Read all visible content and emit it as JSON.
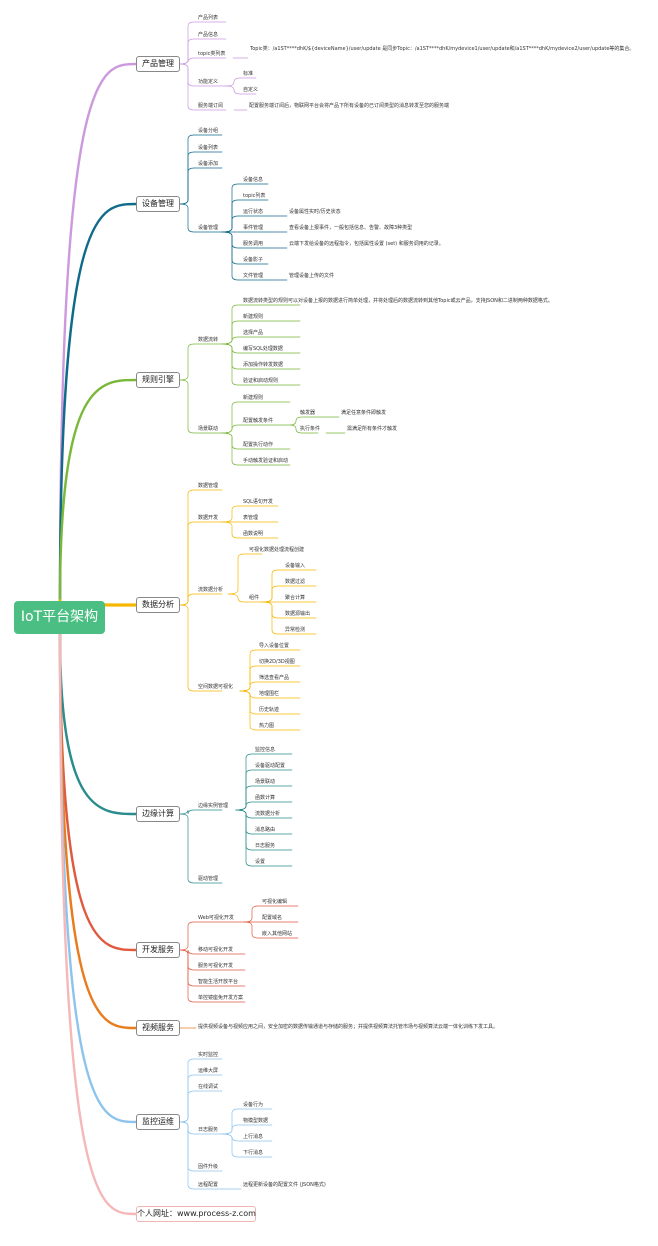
{
  "title": "IoT平台架构",
  "colors": {
    "root": "#4bbf83",
    "product": "#cc99dd",
    "device": "#106a8a",
    "rules": "#7ab83a",
    "analytics": "#f5b800",
    "edge": "#2a8c8c",
    "dev": "#e05a40",
    "video": "#e87c1e",
    "monitor": "#8cc4ee",
    "website": "#f5b8b8"
  },
  "branches": {
    "product": {
      "label": "产品管理",
      "items": [
        "产品列表",
        "产品信息",
        "topic类列表",
        "功能定义",
        "服务端订阅"
      ],
      "topic_desc": "Topic类：/a1ST****dhK/${deviceName}/user/update 是同步Topic：/a1ST****dhK/mydevice1/user/update和/a1ST****dhK/mydevice2/user/update等的集合。",
      "function_items": [
        "标准",
        "自定义"
      ],
      "subscribe_desc": "配置服务端订阅后，物联网平台会将产品下所有设备的已订阅类型的消息转发至您的服务端"
    },
    "device": {
      "label": "设备管理",
      "items": [
        "设备分组",
        "设备列表",
        "设备添加",
        "设备管理"
      ],
      "manage_items": [
        "设备信息",
        "topic列表",
        "运行状态",
        "事件管理",
        "服务调用",
        "设备影子",
        "文件管理"
      ],
      "run_desc": "设备属性实时/历史状态",
      "event_desc": "查看设备上报事件，一般包括信息、告警、故障3种类型",
      "service_desc": "云端下发给设备的远程指令，包括属性设置 (set) 和服务调用的记录。",
      "file_desc": "管理设备上传的文件"
    },
    "rules": {
      "label": "规则引擎",
      "items": [
        "数据流转",
        "场景联动"
      ],
      "flow_items": [
        "数据流转类型的规则可以对设备上报的数据进行简单处理，并将处理后的数据流转到其他Topic或云产品，支持JSON和二进制两种数据格式。",
        "新建规则",
        "选择产品",
        "编写SQL处理数据",
        "添加操作转发数据",
        "验证和启动规则"
      ],
      "scene_items": [
        "新建规则",
        "配置触发条件",
        "配置执行动作",
        "手动触发验证和启动"
      ],
      "trigger_items": [
        "触发器",
        "执行条件"
      ],
      "trigger_desc": "满足任意条件即触发",
      "exec_desc": "需满足所有条件才触发"
    },
    "analytics": {
      "label": "数据分析",
      "items": [
        "数据管理",
        "数据开发",
        "流数据分析",
        "空间数据可视化"
      ],
      "dev_items": [
        "SQL语句开发",
        "表管理",
        "函数说明"
      ],
      "stream_items": [
        "可视化数据处理流程创建",
        "组件"
      ],
      "component_items": [
        "设备输入",
        "数据过滤",
        "聚合计算",
        "数据源输出",
        "异常检测"
      ],
      "spatial_items": [
        "导入设备位置",
        "切换2D/3D视图",
        "筛选查看产品",
        "地理围栏",
        "历史轨迹",
        "热力图"
      ]
    },
    "edge": {
      "label": "边缘计算",
      "items": [
        "边缘实例管理",
        "驱动管理"
      ],
      "instance_items": [
        "监控信息",
        "设备驱动配置",
        "场景联动",
        "函数计算",
        "流数据分析",
        "消息路由",
        "日志服务",
        "设置"
      ]
    },
    "dev": {
      "label": "开发服务",
      "items": [
        "Web可视化开发",
        "移动可视化开发",
        "服务可视化开发",
        "智能生活开放平台",
        "单控镜座免开发方案"
      ],
      "web_items": [
        "可视化编辑",
        "配置域名",
        "嵌入其他网站"
      ]
    },
    "video": {
      "label": "视频服务",
      "desc": "提供视频设备与视频应用之间，安全加密的数据传输通道与存储的服务；并提供视频算法托管市场与视频算法云端一体化训练下发工具。"
    },
    "monitor": {
      "label": "监控运维",
      "items": [
        "实时监控",
        "运维大屏",
        "在线调试",
        "日志服务",
        "固件升级",
        "远程配置"
      ],
      "log_items": [
        "设备行为",
        "物模型数据",
        "上行消息",
        "下行消息"
      ],
      "remote_desc": "远程更新设备的配置文件 (JSON格式)"
    },
    "website": {
      "label": "个人网址：www.process-z.com"
    }
  }
}
